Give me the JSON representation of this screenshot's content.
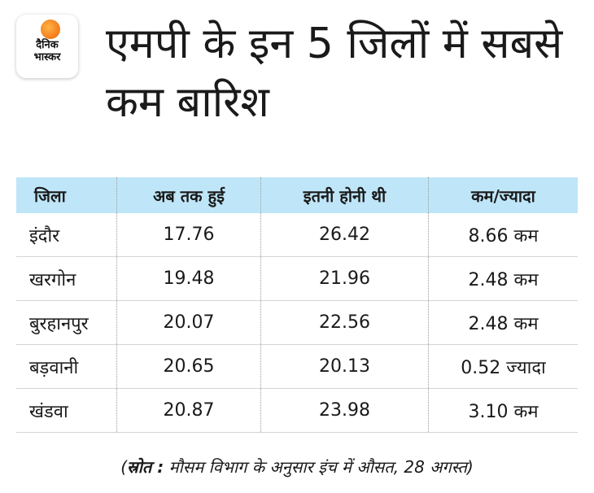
{
  "logo": {
    "line1": "दैनिक",
    "line2": "भास्कर"
  },
  "headline": "एमपी के इन 5 जिलों में सबसे कम बारिश",
  "table": {
    "headers": [
      "जिला",
      "अब तक हुई",
      "इतनी होनी थी",
      "कम/ज्यादा"
    ],
    "rows": [
      [
        "इंदौर",
        "17.76",
        "26.42",
        "8.66 कम"
      ],
      [
        "खरगोन",
        "19.48",
        "21.96",
        "2.48 कम"
      ],
      [
        "बुरहानपुर",
        "20.07",
        "22.56",
        "2.48 कम"
      ],
      [
        "बड़वानी",
        "20.65",
        "20.13",
        "0.52 ज्यादा"
      ],
      [
        "खंडवा",
        "20.87",
        "23.98",
        "3.10 कम"
      ]
    ]
  },
  "source": {
    "open": "(",
    "label": "स्रोत :",
    "text": " मौसम विभाग के अनुसार इंच में औसत, 28 अगस्त",
    "close": ")"
  },
  "colors": {
    "header_bg": "#bfe6f8",
    "logo_accent": "#f58220"
  }
}
